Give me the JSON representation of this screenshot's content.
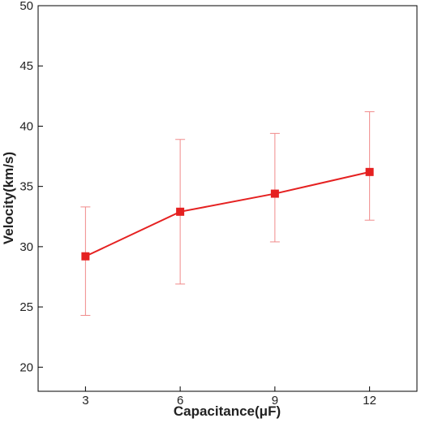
{
  "chart_data": {
    "type": "line",
    "title": "",
    "xlabel": "Capacitance(μF)",
    "ylabel": "Velocity(km/s)",
    "xlim": [
      1.5,
      13.5
    ],
    "ylim": [
      18,
      50
    ],
    "xticks": [
      3,
      6,
      9,
      12
    ],
    "yticks": [
      20,
      25,
      30,
      35,
      40,
      45,
      50
    ],
    "grid": false,
    "legend": "none",
    "series": [
      {
        "x": [
          3,
          6,
          9,
          12
        ],
        "y": [
          29.2,
          32.9,
          34.4,
          36.2
        ],
        "error_low": [
          24.3,
          26.9,
          30.4,
          32.2
        ],
        "error_high": [
          33.3,
          38.9,
          39.4,
          41.2
        ],
        "marker": "square",
        "color": "#e52121",
        "error_color": "#f08a8a"
      }
    ]
  }
}
